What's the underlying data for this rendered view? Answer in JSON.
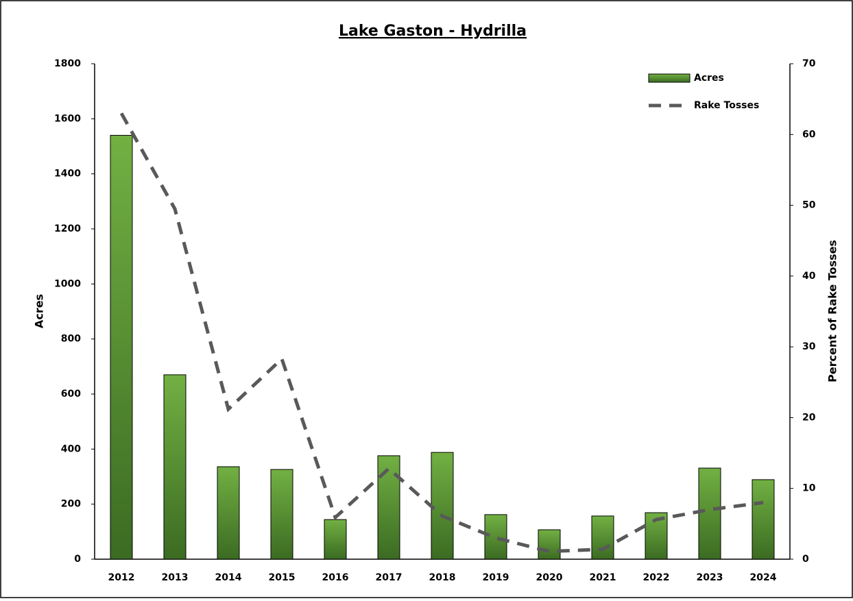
{
  "chart_data": {
    "type": "bar_line",
    "title": "Lake Gaston - Hydrilla",
    "y_label": "Acres",
    "y2_label": "Percent of Rake Tosses",
    "categories": [
      "2012",
      "2013",
      "2014",
      "2015",
      "2016",
      "2017",
      "2018",
      "2019",
      "2020",
      "2021",
      "2022",
      "2023",
      "2024"
    ],
    "series": [
      {
        "name": "Acres",
        "type": "bar",
        "color": "#5a9a35",
        "values": [
          1540,
          670,
          336,
          326,
          144,
          376,
          388,
          162,
          107,
          157,
          169,
          331,
          289
        ]
      },
      {
        "name": "Rake Tosses",
        "type": "line",
        "axis": "y2",
        "color": "#595959",
        "values": [
          63,
          49.5,
          21.2,
          28.3,
          5.9,
          12.8,
          6.1,
          3,
          1.1,
          1.4,
          5.6,
          7,
          8
        ]
      }
    ],
    "ylim": [
      0,
      1800
    ],
    "yticks": [
      0,
      200,
      400,
      600,
      800,
      1000,
      1200,
      1400,
      1600,
      1800
    ],
    "y2lim": [
      0,
      70
    ],
    "y2ticks": [
      0,
      10,
      20,
      30,
      40,
      50,
      60,
      70
    ],
    "grid": false,
    "legend": "top-right"
  }
}
